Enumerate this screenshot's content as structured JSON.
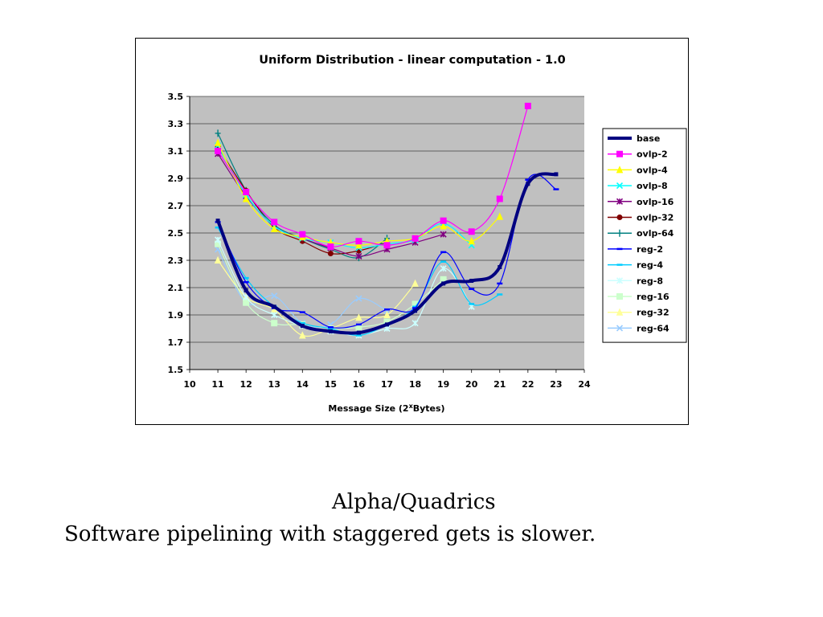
{
  "slide": {
    "caption_line1": "Alpha/Quadrics",
    "caption_line2": "Software pipelining with staggered gets is slower."
  },
  "chart_data": {
    "type": "line",
    "title": "Uniform Distribution - linear computation - 1.0",
    "xlabel": "Message Size (2^Bytes)",
    "xlabel_parts": {
      "before": "Message Size (2",
      "sup": "x",
      "after": "Bytes)"
    },
    "ylabel": "",
    "xlim": [
      10,
      24
    ],
    "ylim": [
      1.5,
      3.5
    ],
    "x_ticks": [
      "10",
      "11",
      "12",
      "13",
      "14",
      "15",
      "16",
      "17",
      "18",
      "19",
      "20",
      "21",
      "22",
      "23",
      "24"
    ],
    "y_ticks": [
      "1.5",
      "1.7",
      "1.9",
      "2.1",
      "2.3",
      "2.5",
      "2.7",
      "2.9",
      "3.1",
      "3.3",
      "3.5"
    ],
    "grid": true,
    "plot_background": "#c0c0c0",
    "legend_position": "right",
    "series": [
      {
        "name": "base",
        "color": "#000080",
        "width": 4,
        "marker": "none",
        "x": [
          11,
          12,
          13,
          14,
          15,
          16,
          17,
          18,
          19,
          20,
          21,
          22,
          23
        ],
        "y": [
          2.59,
          2.08,
          1.96,
          1.82,
          1.78,
          1.77,
          1.83,
          1.93,
          2.13,
          2.15,
          2.25,
          2.86,
          2.93
        ]
      },
      {
        "name": "ovlp-2",
        "color": "#ff00ff",
        "width": 1.2,
        "marker": "square",
        "x": [
          11,
          12,
          13,
          14,
          15,
          16,
          17,
          18,
          19,
          20,
          21,
          22
        ],
        "y": [
          3.1,
          2.8,
          2.58,
          2.49,
          2.4,
          2.44,
          2.41,
          2.46,
          2.59,
          2.51,
          2.75,
          3.43
        ]
      },
      {
        "name": "ovlp-4",
        "color": "#ffff00",
        "width": 1.2,
        "marker": "triangle",
        "x": [
          11,
          12,
          13,
          14,
          15,
          16,
          17,
          18,
          19,
          20,
          21
        ],
        "y": [
          3.16,
          2.75,
          2.53,
          2.47,
          2.43,
          2.41,
          2.44,
          2.46,
          2.55,
          2.44,
          2.62
        ]
      },
      {
        "name": "ovlp-8",
        "color": "#00ffff",
        "width": 1.2,
        "marker": "x",
        "x": [
          11,
          12,
          13,
          14,
          15,
          16,
          17,
          18,
          19,
          20
        ],
        "y": [
          3.14,
          2.78,
          2.55,
          2.46,
          2.43,
          2.39,
          2.42,
          2.45,
          2.57,
          2.41
        ]
      },
      {
        "name": "ovlp-16",
        "color": "#800080",
        "width": 1.2,
        "marker": "star",
        "x": [
          11,
          12,
          13,
          14,
          15,
          16,
          17,
          18,
          19
        ],
        "y": [
          3.08,
          2.77,
          2.55,
          2.46,
          2.39,
          2.33,
          2.38,
          2.43,
          2.49
        ]
      },
      {
        "name": "ovlp-32",
        "color": "#800000",
        "width": 1.2,
        "marker": "circle",
        "x": [
          11,
          12,
          13,
          14,
          15,
          16,
          17
        ],
        "y": [
          3.13,
          2.81,
          2.54,
          2.44,
          2.35,
          2.37,
          2.43
        ]
      },
      {
        "name": "ovlp-64",
        "color": "#008080",
        "width": 1.2,
        "marker": "plus",
        "x": [
          11,
          12,
          13,
          14,
          15,
          16,
          17
        ],
        "y": [
          3.23,
          2.81,
          2.56,
          2.46,
          2.38,
          2.32,
          2.46
        ]
      },
      {
        "name": "reg-2",
        "color": "#0000ff",
        "width": 1.2,
        "marker": "dash",
        "x": [
          11,
          12,
          13,
          14,
          15,
          16,
          17,
          18,
          19,
          20,
          21,
          22,
          23
        ],
        "y": [
          2.58,
          2.14,
          1.95,
          1.92,
          1.81,
          1.83,
          1.94,
          1.95,
          2.36,
          2.09,
          2.13,
          2.89,
          2.82
        ]
      },
      {
        "name": "reg-4",
        "color": "#00ccff",
        "width": 1.2,
        "marker": "dash",
        "x": [
          11,
          12,
          13,
          14,
          15,
          16,
          17,
          18,
          19,
          20,
          21
        ],
        "y": [
          2.54,
          2.17,
          1.96,
          1.84,
          1.8,
          1.75,
          1.83,
          1.96,
          2.29,
          1.98,
          2.05
        ]
      },
      {
        "name": "reg-8",
        "color": "#ccffff",
        "width": 1.2,
        "marker": "star",
        "x": [
          11,
          12,
          13,
          14,
          15,
          16,
          17,
          18,
          19,
          20
        ],
        "y": [
          2.45,
          2.03,
          1.9,
          1.82,
          1.78,
          1.75,
          1.8,
          1.84,
          2.24,
          1.96
        ]
      },
      {
        "name": "reg-16",
        "color": "#ccffcc",
        "width": 1.2,
        "marker": "square",
        "x": [
          11,
          12,
          13,
          14,
          15,
          16,
          17,
          18,
          19
        ],
        "y": [
          2.42,
          1.99,
          1.84,
          1.83,
          1.8,
          1.81,
          1.85,
          1.98,
          2.16
        ]
      },
      {
        "name": "reg-32",
        "color": "#ffff99",
        "width": 1.2,
        "marker": "triangle",
        "x": [
          11,
          12,
          13,
          14,
          15,
          16,
          17,
          18
        ],
        "y": [
          2.3,
          2.03,
          1.94,
          1.75,
          1.8,
          1.88,
          1.9,
          2.13
        ]
      },
      {
        "name": "reg-64",
        "color": "#99ccff",
        "width": 1.2,
        "marker": "x",
        "x": [
          11,
          12,
          13,
          14,
          15,
          16,
          17
        ],
        "y": [
          2.38,
          1.99,
          2.04,
          1.84,
          1.83,
          2.02,
          1.93
        ]
      }
    ]
  }
}
